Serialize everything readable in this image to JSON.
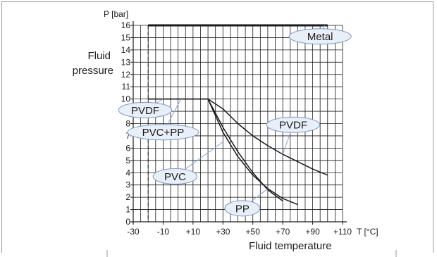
{
  "chart_data": {
    "type": "line",
    "y_unit_label": "P [bar]",
    "x_unit_label": "T [°C]",
    "ylabel": [
      "Fluid",
      "pressure"
    ],
    "xlabel": "Fluid temperature",
    "xlim": [
      -30,
      110
    ],
    "ylim": [
      0,
      16
    ],
    "x_tick_values": [
      -30,
      -10,
      10,
      30,
      50,
      70,
      90,
      110
    ],
    "x_tick_labels": [
      "-30",
      "-10",
      "+10",
      "+30",
      "+50",
      "+70",
      "+90",
      "+110"
    ],
    "y_ticks": [
      0,
      1,
      2,
      3,
      4,
      5,
      6,
      7,
      8,
      9,
      10,
      11,
      12,
      13,
      14,
      15,
      16
    ],
    "x_grid_step": 5,
    "y_grid_step": 1,
    "grid": true,
    "reference_line_x": -20,
    "series": [
      {
        "name": "Metal",
        "x": [
          -20,
          100
        ],
        "y": [
          16,
          16
        ]
      },
      {
        "name": "PVDF",
        "x": [
          -20,
          20,
          30,
          40,
          50,
          60,
          70,
          80,
          90,
          100
        ],
        "y": [
          10,
          10,
          9.2,
          8.0,
          7.0,
          6.2,
          5.5,
          4.9,
          4.3,
          3.8
        ]
      },
      {
        "name": "PVC+PP",
        "x": [
          -20,
          20
        ],
        "y": [
          10,
          10
        ]
      },
      {
        "name": "PVC",
        "x": [
          20,
          30,
          40,
          50,
          60,
          70
        ],
        "y": [
          10,
          7.7,
          5.7,
          4.0,
          2.6,
          1.7
        ]
      },
      {
        "name": "PP",
        "x": [
          20,
          30,
          40,
          50,
          60,
          70,
          80
        ],
        "y": [
          10,
          7.3,
          5.3,
          3.8,
          2.7,
          1.9,
          1.4
        ]
      }
    ]
  },
  "annotations": [
    {
      "id": "metal",
      "label": "Metal",
      "x": 95,
      "y": 15.1,
      "ax": 98,
      "ay": 16
    },
    {
      "id": "pvdf-left",
      "label": "PVDF",
      "x": -22,
      "y": 9.1,
      "ax": -10,
      "ay": 10
    },
    {
      "id": "pvc-pp",
      "label": "PVC+PP",
      "x": -10,
      "y": 7.3,
      "ax": 2,
      "ay": 10
    },
    {
      "id": "pvdf-right",
      "label": "PVDF",
      "x": 77,
      "y": 7.9,
      "ax": 70,
      "ay": 5.5
    },
    {
      "id": "pvc",
      "label": "PVC",
      "x": -2,
      "y": 3.7,
      "ax": 30,
      "ay": 6.5
    },
    {
      "id": "pp",
      "label": "PP",
      "x": 43,
      "y": 1.1,
      "ax": 60,
      "ay": 2.7
    }
  ],
  "colors": {
    "axis": "#1a1a1a",
    "grid": "#1a1a1a",
    "series": "#1a1a1a",
    "callout_fill": "#e9eff8",
    "callout_stroke": "#7b97c6",
    "callout_leader": "#8aa3cd"
  }
}
